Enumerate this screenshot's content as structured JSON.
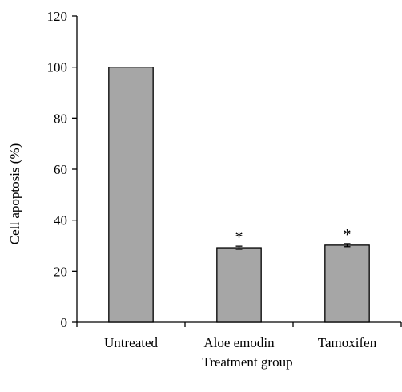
{
  "chart_data": {
    "type": "bar",
    "xlabel": "Treatment group",
    "ylabel": "Cell apoptosis (%)",
    "ylim": [
      0,
      120
    ],
    "yticks": [
      0,
      20,
      40,
      60,
      80,
      100,
      120
    ],
    "categories": [
      "Untreated",
      "Aloe emodin",
      "Tamoxifen"
    ],
    "values": [
      100,
      29.2,
      30.2
    ],
    "errors": [
      0,
      0.6,
      0.6
    ],
    "annotations": [
      "",
      "*",
      "*"
    ],
    "grid": false,
    "legend": "none",
    "colors": {
      "bar_fill": "#a6a6a6",
      "bar_stroke": "#000000",
      "axis": "#000000"
    }
  }
}
